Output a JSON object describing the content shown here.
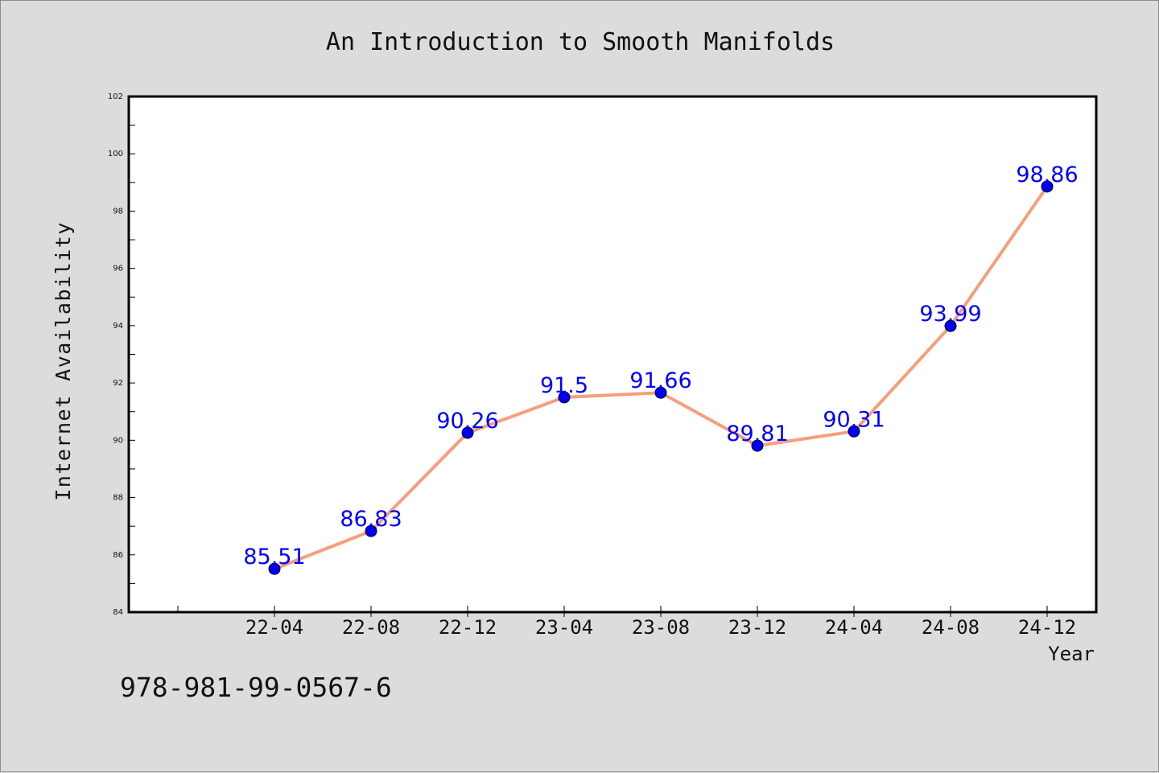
{
  "chart_data": {
    "type": "line",
    "title": "An Introduction to Smooth Manifolds",
    "xlabel": "Year",
    "ylabel": "Internet Availability",
    "categories": [
      "22-04",
      "22-08",
      "22-12",
      "23-04",
      "23-08",
      "23-12",
      "24-04",
      "24-08",
      "24-12"
    ],
    "series": [
      {
        "values": [
          85.51,
          86.83,
          90.26,
          91.5,
          91.66,
          89.81,
          90.31,
          93.99,
          98.86
        ],
        "labels": [
          "85.51",
          "86.83",
          "90.26",
          "91.5",
          "91.66",
          "89.81",
          "90.31",
          "93.99",
          "98.86"
        ],
        "line_color": "#f5a07a",
        "marker_color": "#0000ee",
        "label_color": "#0000ff"
      }
    ],
    "yticks": [
      "84",
      "86",
      "88",
      "90",
      "92",
      "94",
      "96",
      "98",
      "100",
      "102"
    ],
    "ylim": [
      84,
      102
    ],
    "grid": false,
    "legend": "none"
  },
  "footer": {
    "isbn": "978-981-99-0567-6"
  }
}
